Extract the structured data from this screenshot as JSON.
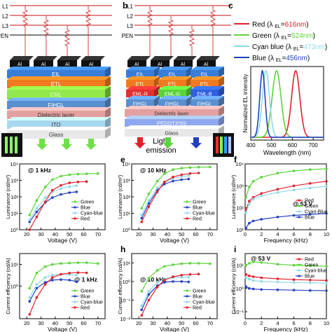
{
  "panel_labels": {
    "b": "b",
    "c": "c",
    "e": "e",
    "f": "f",
    "h": "h",
    "i": "i"
  },
  "device_a": {
    "lines": [
      "L1",
      "L2",
      "L3",
      "PEN"
    ],
    "electrodes": [
      "Al",
      "Al",
      "Al",
      "Al"
    ],
    "layers": [
      "EIL",
      "ETL",
      "EML",
      "FIHGL",
      "Dielectric layer",
      "ITO",
      "Glass"
    ],
    "light_emission": "Light emission"
  },
  "device_b": {
    "lines": [
      "L1",
      "L2",
      "L3",
      "PEN"
    ],
    "electrodes": [
      "Al",
      "Al",
      "Al",
      "Al"
    ],
    "eil": [
      "EIL",
      "EIL",
      "EIL"
    ],
    "etl": [
      "ETL",
      "ETL",
      "ETL"
    ],
    "eml": [
      "EML-R",
      "EML-G",
      "EML-B"
    ],
    "fihgl": [
      "FIHGL",
      "FIHGL",
      "FIHGL"
    ],
    "layers": [
      "Dielectric layer",
      "PEDOT:PSS",
      "Glass"
    ]
  },
  "colors": {
    "red": "#e0202a",
    "green": "#5ad43a",
    "cyan": "#8fd8e8",
    "blue": "#2040c0"
  },
  "chart_data": [
    {
      "id": "c",
      "type": "line",
      "xlabel": "Wavelength (nm)",
      "ylabel": "Normalized EL intensity",
      "xlim": [
        400,
        750
      ],
      "xticks": [
        400,
        500,
        600,
        700
      ],
      "legend_placement": "top",
      "series": [
        {
          "name": "Red",
          "peak_label": "616nm",
          "peak": 616,
          "width": 28,
          "color": "#e0202a"
        },
        {
          "name": "Green",
          "peak_label": "524nm",
          "peak": 524,
          "width": 30,
          "color": "#5ad43a"
        },
        {
          "name": "Cyan blue",
          "peak_label": "473nm",
          "peak": 473,
          "width": 24,
          "color": "#8fd8e8"
        },
        {
          "name": "Blue",
          "peak_label": "456nm",
          "peak": 456,
          "width": 18,
          "color": "#2040c0"
        }
      ]
    },
    {
      "id": "d",
      "type": "line",
      "annotation": "@ 1 kHz",
      "xlabel": "Voltage (V)",
      "ylabel": "Luminance (cd/m²)",
      "xlim": [
        15,
        75
      ],
      "ylim_log": [
        0,
        4
      ],
      "xticks": [
        20,
        30,
        40,
        50,
        60,
        70
      ],
      "yticks": [
        "10⁰",
        "10¹",
        "10²",
        "10³",
        "10⁴"
      ],
      "series": [
        {
          "name": "Green",
          "color": "#5ad43a",
          "x": [
            22,
            27,
            33,
            38,
            44,
            50,
            56,
            62,
            70
          ],
          "y": [
            8,
            60,
            400,
            1100,
            1800,
            2200,
            2400,
            2500,
            2600
          ]
        },
        {
          "name": "Blue",
          "color": "#2040c0",
          "x": [
            22,
            27,
            33,
            38,
            44,
            50,
            55
          ],
          "y": [
            3,
            12,
            45,
            90,
            140,
            180,
            200
          ]
        },
        {
          "name": "Cyan-blue",
          "color": "#8fd8e8",
          "x": [
            22,
            27,
            33,
            38,
            44,
            50,
            55
          ],
          "y": [
            4,
            20,
            90,
            200,
            320,
            420,
            480
          ]
        },
        {
          "name": "Red",
          "color": "#e0202a",
          "x": [
            22,
            27,
            33,
            38,
            44,
            50,
            56,
            62
          ],
          "y": [
            1,
            6,
            50,
            250,
            500,
            700,
            800,
            850
          ]
        }
      ]
    },
    {
      "id": "e",
      "type": "line",
      "annotation": "@ 10 kHz",
      "xlabel": "Voltage (V)",
      "ylabel": "Luminance (cd/m²)",
      "xlim": [
        15,
        75
      ],
      "ylim_log": [
        0,
        4
      ],
      "xticks": [
        20,
        30,
        40,
        50,
        60,
        70
      ],
      "yticks": [
        "10⁰",
        "10¹",
        "10²",
        "10³",
        "10⁴"
      ],
      "series": [
        {
          "name": "Green",
          "color": "#5ad43a",
          "x": [
            22,
            27,
            33,
            38,
            44,
            50,
            56,
            62,
            70
          ],
          "y": [
            20,
            150,
            900,
            2500,
            4500,
            5500,
            6000,
            6300,
            6500
          ]
        },
        {
          "name": "Blue",
          "color": "#2040c0",
          "x": [
            22,
            27,
            33,
            38,
            44,
            50,
            55
          ],
          "y": [
            5,
            40,
            250,
            600,
            900,
            1100,
            1200
          ]
        },
        {
          "name": "Cyan-blue",
          "color": "#8fd8e8",
          "x": [
            22,
            27,
            33,
            38,
            44,
            50,
            55
          ],
          "y": [
            8,
            60,
            350,
            800,
            1300,
            1700,
            1900
          ]
        },
        {
          "name": "Red",
          "color": "#e0202a",
          "x": [
            22,
            27,
            33,
            38,
            44,
            50,
            56,
            62
          ],
          "y": [
            3,
            25,
            200,
            800,
            1600,
            2200,
            2600,
            2800
          ]
        }
      ]
    },
    {
      "id": "f",
      "type": "line",
      "annotation": "@ 53 V",
      "xlabel": "Frequency (kHz)",
      "ylabel": "Luminance (cd/m²)",
      "xlim": [
        0,
        10
      ],
      "ylim_log": [
        1,
        4
      ],
      "xticks": [
        0,
        2,
        4,
        6,
        8,
        10
      ],
      "yticks": [
        "10¹",
        "10²",
        "10³",
        "10⁴"
      ],
      "series": [
        {
          "name": "Red",
          "color": "#e0202a",
          "x": [
            0.1,
            0.5,
            1,
            2,
            4,
            6,
            8,
            10
          ],
          "y": [
            80,
            200,
            300,
            450,
            700,
            1000,
            1300,
            1600
          ]
        },
        {
          "name": "Green",
          "color": "#5ad43a",
          "x": [
            0.1,
            0.5,
            1,
            2,
            4,
            6,
            8,
            10
          ],
          "y": [
            300,
            900,
            1600,
            2500,
            3800,
            4800,
            5500,
            6000
          ]
        },
        {
          "name": "Cyan-Blue",
          "color": "#8fd8e8",
          "x": [
            0.1,
            0.5,
            1,
            2,
            4,
            6,
            8,
            10
          ],
          "y": [
            60,
            150,
            250,
            350,
            500,
            650,
            800,
            950
          ]
        },
        {
          "name": "Blue",
          "color": "#2040c0",
          "x": [
            0.1,
            0.5,
            1,
            2,
            4,
            6,
            8,
            10
          ],
          "y": [
            12,
            20,
            25,
            30,
            38,
            45,
            50,
            55
          ]
        }
      ]
    },
    {
      "id": "g",
      "type": "line",
      "annotation": "@ 1 kHz",
      "xlabel": "Voltage (V)",
      "ylabel": "Current efficiency (cd/A)",
      "xlim": [
        15,
        75
      ],
      "ylim_log": [
        -1.5,
        1.5
      ],
      "xticks": [
        20,
        30,
        40,
        50,
        60,
        70
      ],
      "yticks": [
        "10⁰",
        "10¹"
      ],
      "series": [
        {
          "name": "Green",
          "color": "#5ad43a",
          "x": [
            22,
            27,
            33,
            38,
            44,
            50,
            56,
            62,
            70
          ],
          "y": [
            0.8,
            4,
            8,
            10,
            11,
            11.5,
            12,
            12,
            11
          ]
        },
        {
          "name": "Blue",
          "color": "#2040c0",
          "x": [
            22,
            27,
            33,
            38,
            44,
            50,
            55
          ],
          "y": [
            0.2,
            0.8,
            1.5,
            1.9,
            2.0,
            1.9,
            1.6
          ]
        },
        {
          "name": "Cyan-blue",
          "color": "#8fd8e8",
          "x": [
            22,
            27,
            33,
            38,
            44,
            50,
            55
          ],
          "y": [
            0.3,
            1.2,
            2.5,
            3.2,
            3.5,
            3.4,
            3.2
          ]
        },
        {
          "name": "Red",
          "color": "#e0202a",
          "x": [
            22,
            27,
            33,
            38,
            44,
            50,
            56,
            62
          ],
          "y": [
            0.05,
            0.3,
            1.2,
            2.5,
            3.5,
            4.0,
            4.2,
            4.1
          ]
        }
      ]
    },
    {
      "id": "h",
      "type": "line",
      "annotation": "@ 10 kHz",
      "xlabel": "Voltage (V)",
      "ylabel": "Current efficiency (cd/A)",
      "xlim": [
        15,
        75
      ],
      "ylim_log": [
        -2,
        1.5
      ],
      "xticks": [
        20,
        30,
        40,
        50,
        60,
        70
      ],
      "yticks": [
        "10⁻²",
        "10⁻¹",
        "10⁰",
        "10¹"
      ],
      "series": [
        {
          "name": "Green",
          "color": "#5ad43a",
          "x": [
            22,
            27,
            33,
            38,
            44,
            50,
            56,
            62,
            70
          ],
          "y": [
            0.3,
            1.5,
            4,
            6.5,
            8,
            9,
            9.5,
            9.5,
            9
          ]
        },
        {
          "name": "Blue",
          "color": "#2040c0",
          "x": [
            22,
            27,
            33,
            38,
            44,
            50,
            55
          ],
          "y": [
            0.03,
            0.2,
            0.6,
            0.9,
            1.0,
            1.0,
            0.95
          ]
        },
        {
          "name": "Cyan-blue",
          "color": "#8fd8e8",
          "x": [
            22,
            27,
            33,
            38,
            44,
            50,
            55
          ],
          "y": [
            0.05,
            0.3,
            0.9,
            1.4,
            1.6,
            1.7,
            1.7
          ]
        },
        {
          "name": "Red",
          "color": "#e0202a",
          "x": [
            22,
            27,
            33,
            38,
            44,
            50,
            56,
            62
          ],
          "y": [
            0.015,
            0.1,
            0.5,
            1.2,
            1.8,
            2.2,
            2.4,
            2.5
          ]
        }
      ]
    },
    {
      "id": "i",
      "type": "line",
      "annotation": "@ 53 V",
      "xlabel": "Frequency (kHz)",
      "ylabel": "Current efficiency (cd/A)",
      "xlim": [
        0,
        10
      ],
      "ylim_log": [
        -1.3,
        1.5
      ],
      "xticks": [
        0,
        2,
        4,
        6,
        8,
        10
      ],
      "yticks": [
        "10⁻¹",
        "10⁰",
        "10¹"
      ],
      "series": [
        {
          "name": "Red",
          "color": "#e0202a",
          "x": [
            0.1,
            0.5,
            1,
            2,
            4,
            6,
            8,
            10
          ],
          "y": [
            4,
            3.5,
            3.2,
            2.9,
            2.6,
            2.4,
            2.3,
            2.2
          ]
        },
        {
          "name": "Green",
          "color": "#5ad43a",
          "x": [
            0.1,
            0.5,
            1,
            2,
            4,
            6,
            8,
            10
          ],
          "y": [
            10,
            12,
            14,
            13,
            11,
            10,
            9.5,
            9
          ]
        },
        {
          "name": "Cyan-blue",
          "color": "#8fd8e8",
          "x": [
            0.1,
            0.5,
            1,
            2,
            4,
            6,
            8,
            10
          ],
          "y": [
            3,
            2.5,
            2.2,
            2.0,
            1.9,
            1.8,
            1.75,
            1.7
          ]
        },
        {
          "name": "Blue",
          "color": "#2040c0",
          "x": [
            0.1,
            0.5,
            1,
            2,
            4,
            6,
            8,
            10
          ],
          "y": [
            1.2,
            1.0,
            0.95,
            0.9,
            0.88,
            0.85,
            0.82,
            0.8
          ]
        }
      ]
    }
  ]
}
